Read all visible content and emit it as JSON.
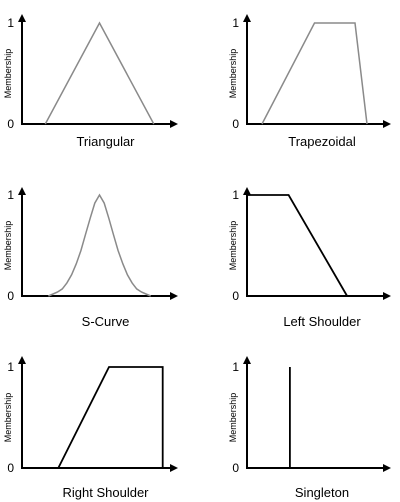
{
  "colors": {
    "axis": "#000000",
    "curve_gray": "#8a8a8a",
    "curve_black": "#000000"
  },
  "chart_data": [
    {
      "type": "line",
      "shape": "triangular",
      "title": "Triangular",
      "ylabel": "Membership",
      "ytick_labels": [
        "0",
        "1"
      ],
      "ylim": [
        0,
        1
      ],
      "x": [
        0.15,
        0.5,
        0.85
      ],
      "y": [
        0,
        1,
        0
      ],
      "curve_color": "#8a8a8a"
    },
    {
      "type": "line",
      "shape": "trapezoidal",
      "title": "Trapezoidal",
      "ylabel": "Membership",
      "ytick_labels": [
        "0",
        "1"
      ],
      "ylim": [
        0,
        1
      ],
      "x": [
        0.1,
        0.45,
        0.72,
        0.8
      ],
      "y": [
        0,
        1,
        1,
        0
      ],
      "curve_color": "#8a8a8a"
    },
    {
      "type": "line",
      "shape": "s-curve",
      "title": "S-Curve",
      "ylabel": "Membership",
      "ytick_labels": [
        "0",
        "1"
      ],
      "ylim": [
        0,
        1
      ],
      "x": [
        0.17,
        0.2,
        0.23,
        0.26,
        0.29,
        0.32,
        0.35,
        0.38,
        0.41,
        0.44,
        0.47,
        0.5,
        0.53,
        0.56,
        0.59,
        0.62,
        0.65,
        0.68,
        0.71,
        0.74,
        0.77,
        0.8,
        0.83
      ],
      "y": [
        0.0,
        0.02,
        0.04,
        0.07,
        0.13,
        0.21,
        0.32,
        0.45,
        0.61,
        0.77,
        0.92,
        1.0,
        0.92,
        0.77,
        0.61,
        0.45,
        0.32,
        0.21,
        0.13,
        0.07,
        0.04,
        0.02,
        0.0
      ],
      "curve_color": "#8a8a8a"
    },
    {
      "type": "line",
      "shape": "left-shoulder",
      "title": "Left Shoulder",
      "ylabel": "Membership",
      "ytick_labels": [
        "0",
        "1"
      ],
      "ylim": [
        0,
        1
      ],
      "x": [
        0,
        0.32,
        0.77
      ],
      "y": [
        1,
        1,
        0
      ],
      "curve_color": "#000000"
    },
    {
      "type": "line",
      "shape": "right-shoulder",
      "title": "Right Shoulder",
      "ylabel": "Membership",
      "ytick_labels": [
        "0",
        "1"
      ],
      "ylim": [
        0,
        1
      ],
      "x": [
        0.25,
        0.6,
        0.97,
        0.97
      ],
      "y": [
        0,
        1,
        1,
        0
      ],
      "curve_color": "#000000"
    },
    {
      "type": "line",
      "shape": "singleton",
      "title": "Singleton",
      "ylabel": "Membership",
      "ytick_labels": [
        "0",
        "1"
      ],
      "ylim": [
        0,
        1
      ],
      "x": [
        0.33,
        0.33
      ],
      "y": [
        0,
        1
      ],
      "curve_color": "#000000"
    }
  ]
}
